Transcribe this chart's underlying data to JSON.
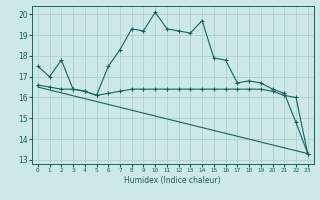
{
  "xlabel": "Humidex (Indice chaleur)",
  "background_color": "#cce8e8",
  "grid_color": "#aacccc",
  "line_color": "#1a6060",
  "xlim": [
    -0.5,
    23.5
  ],
  "ylim": [
    12.8,
    20.4
  ],
  "yticks": [
    13,
    14,
    15,
    16,
    17,
    18,
    19,
    20
  ],
  "xticks": [
    0,
    1,
    2,
    3,
    4,
    5,
    6,
    7,
    8,
    9,
    10,
    11,
    12,
    13,
    14,
    15,
    16,
    17,
    18,
    19,
    20,
    21,
    22,
    23
  ],
  "curve1_x": [
    0,
    1,
    2,
    3,
    4,
    5,
    6,
    7,
    8,
    9,
    10,
    11,
    12,
    13,
    14,
    15,
    16,
    17,
    18,
    19,
    20,
    21,
    22,
    23
  ],
  "curve1_y": [
    17.5,
    17.0,
    17.8,
    16.4,
    16.3,
    16.1,
    17.5,
    18.3,
    19.3,
    19.2,
    20.1,
    19.3,
    19.2,
    19.1,
    19.7,
    17.9,
    17.8,
    16.7,
    16.8,
    16.7,
    16.4,
    16.2,
    14.8,
    13.3
  ],
  "curve2_x": [
    0,
    1,
    2,
    3,
    4,
    5,
    6,
    7,
    8,
    9,
    10,
    11,
    12,
    13,
    14,
    15,
    16,
    17,
    18,
    19,
    20,
    21,
    22,
    23
  ],
  "curve2_y": [
    16.6,
    16.5,
    16.4,
    16.4,
    16.3,
    16.1,
    16.2,
    16.3,
    16.4,
    16.4,
    16.4,
    16.4,
    16.4,
    16.4,
    16.4,
    16.4,
    16.4,
    16.4,
    16.4,
    16.4,
    16.3,
    16.1,
    16.0,
    13.3
  ],
  "curve3_x": [
    0,
    23
  ],
  "curve3_y": [
    16.5,
    13.3
  ]
}
